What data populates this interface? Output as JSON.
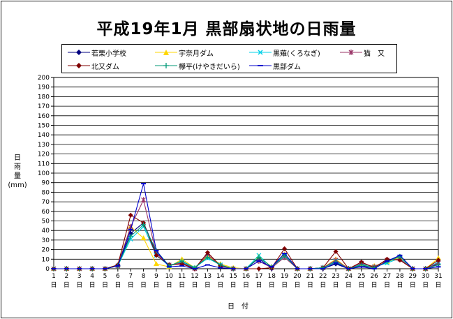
{
  "chart_data": {
    "type": "line",
    "title": "平成19年1月  黒部扇状地の日雨量",
    "xlabel": "日　付",
    "ylabel": "日\n雨\n量\n(mm)",
    "ylim": [
      0,
      200
    ],
    "ystep": 10,
    "x": [
      "1",
      "2",
      "3",
      "4",
      "5",
      "6",
      "7",
      "8",
      "9",
      "10",
      "11",
      "12",
      "13",
      "14",
      "15",
      "16",
      "17",
      "18",
      "19",
      "20",
      "21",
      "22",
      "23",
      "24",
      "25",
      "26",
      "27",
      "28",
      "29",
      "30",
      "31"
    ],
    "x_suffix": "日",
    "grid": true,
    "legend_position": "top",
    "series": [
      {
        "name": "若栗小学校",
        "color": "#000080",
        "marker": "diamond",
        "values": [
          0,
          0,
          0,
          0,
          0,
          3,
          37,
          48,
          17,
          3,
          7,
          0,
          14,
          3,
          0,
          0,
          11,
          0,
          15,
          0,
          0,
          0,
          5,
          0,
          3,
          1,
          8,
          13,
          0,
          0,
          5
        ]
      },
      {
        "name": "宇奈月ダム",
        "color": "#ffd700",
        "marker": "triangle",
        "values": [
          0,
          0,
          0,
          0,
          0,
          4,
          44,
          32,
          5,
          2,
          10,
          1,
          13,
          5,
          1,
          0,
          13,
          2,
          15,
          0,
          0,
          1,
          10,
          0,
          4,
          3,
          7,
          12,
          0,
          0,
          11
        ]
      },
      {
        "name": "黒薙(くろなぎ)",
        "color": "#00d0e8",
        "marker": "x",
        "values": [
          0,
          0,
          0,
          0,
          0,
          3,
          31,
          44,
          14,
          3,
          7,
          1,
          11,
          4,
          0,
          0,
          14,
          1,
          13,
          0,
          0,
          1,
          8,
          0,
          5,
          2,
          6,
          11,
          0,
          0,
          7
        ]
      },
      {
        "name": "猫　又",
        "color": "#993366",
        "marker": "star",
        "values": [
          0,
          0,
          0,
          0,
          0,
          3,
          44,
          72,
          16,
          4,
          6,
          0,
          15,
          3,
          0,
          0,
          8,
          1,
          12,
          0,
          0,
          1,
          9,
          0,
          6,
          2,
          9,
          10,
          0,
          0,
          6
        ]
      },
      {
        "name": "北又ダム",
        "color": "#800000",
        "marker": "diamond",
        "values": [
          0,
          0,
          0,
          0,
          0,
          4,
          56,
          48,
          14,
          4,
          5,
          0,
          17,
          3,
          0,
          0,
          0,
          1,
          21,
          0,
          0,
          1,
          18,
          0,
          7,
          1,
          10,
          9,
          0,
          0,
          9
        ]
      },
      {
        "name": "欅平(けやきだいら)",
        "color": "#009977",
        "marker": "plus",
        "values": [
          0,
          0,
          0,
          0,
          0,
          3,
          34,
          46,
          19,
          3,
          8,
          1,
          12,
          4,
          0,
          0,
          12,
          2,
          14,
          0,
          0,
          1,
          7,
          0,
          4,
          1,
          7,
          13,
          0,
          0,
          4
        ]
      },
      {
        "name": "黒部ダム",
        "color": "#0000cc",
        "marker": "dash",
        "values": [
          0,
          0,
          0,
          0,
          0,
          3,
          41,
          89,
          19,
          2,
          3,
          0,
          4,
          1,
          0,
          0,
          8,
          2,
          16,
          0,
          0,
          0,
          6,
          0,
          2,
          0,
          8,
          14,
          0,
          0,
          2
        ]
      }
    ]
  }
}
